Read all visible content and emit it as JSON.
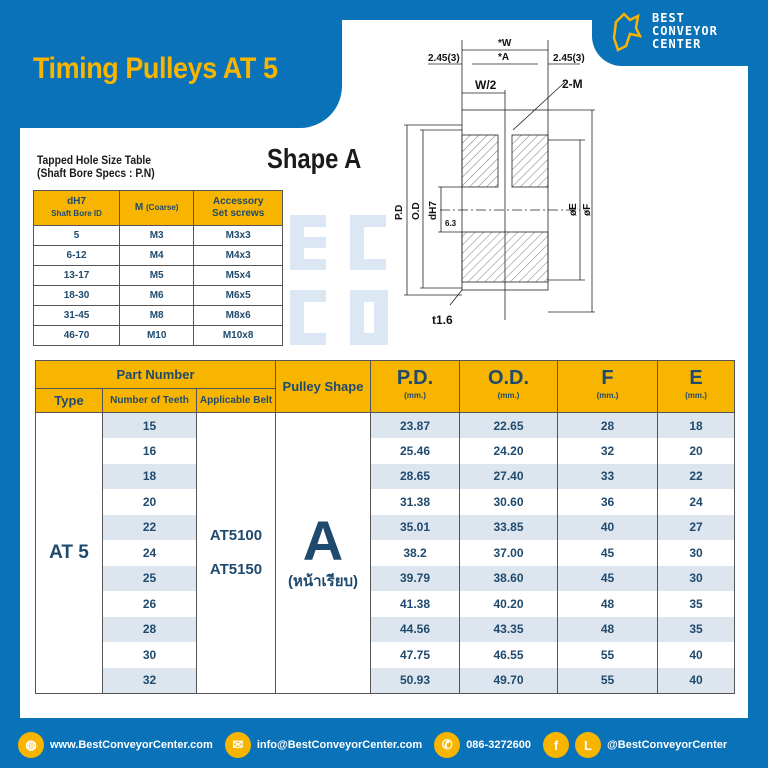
{
  "title": "Timing Pulleys AT 5",
  "logo": {
    "lines": [
      "BEST",
      "CONVEYOR",
      "CENTER"
    ]
  },
  "shape_title": "Shape A",
  "diagram": {
    "labels": {
      "w": "*W",
      "a": "*A",
      "side_l": "2.45(3)",
      "side_r": "2.45(3)",
      "w2": "W/2",
      "m": "2-M",
      "pd": "P.D",
      "od": "O.D",
      "dh7": "dH7",
      "rough": "6.3",
      "e": "øE",
      "f": "øF",
      "t": "t1.6"
    }
  },
  "tapped": {
    "caption": [
      "Tapped Hole Size Table",
      "(Shaft Bore Specs : P.N)"
    ],
    "headers": {
      "dh7": "dH7",
      "dh7_sub": "Shaft Bore ID",
      "m": "M",
      "m_sub": "(Coarse)",
      "acc1": "Accessory",
      "acc2": "Set screws"
    },
    "rows": [
      [
        "5",
        "M3",
        "M3x3"
      ],
      [
        "6-12",
        "M4",
        "M4x3"
      ],
      [
        "13-17",
        "M5",
        "M5x4"
      ],
      [
        "18-30",
        "M6",
        "M6x5"
      ],
      [
        "31-45",
        "M8",
        "M8x6"
      ],
      [
        "46-70",
        "M10",
        "M10x8"
      ]
    ]
  },
  "main": {
    "headers": {
      "part_number": "Part Number",
      "type": "Type",
      "teeth": "Number of Teeth",
      "belt": "Applicable Belt",
      "shape": "Pulley Shape",
      "pd": "P.D.",
      "od": "O.D.",
      "f": "F",
      "e": "E",
      "unit": "(mm.)"
    },
    "type": "AT 5",
    "belts": [
      "AT5100",
      "AT5150"
    ],
    "shape": "A",
    "shape_sub": "(หน้าเรียบ)",
    "rows": [
      [
        "15",
        "23.87",
        "22.65",
        "28",
        "18"
      ],
      [
        "16",
        "25.46",
        "24.20",
        "32",
        "20"
      ],
      [
        "18",
        "28.65",
        "27.40",
        "33",
        "22"
      ],
      [
        "20",
        "31.38",
        "30.60",
        "36",
        "24"
      ],
      [
        "22",
        "35.01",
        "33.85",
        "40",
        "27"
      ],
      [
        "24",
        "38.2",
        "37.00",
        "45",
        "30"
      ],
      [
        "25",
        "39.79",
        "38.60",
        "45",
        "30"
      ],
      [
        "26",
        "41.38",
        "40.20",
        "48",
        "35"
      ],
      [
        "28",
        "44.56",
        "43.35",
        "48",
        "35"
      ],
      [
        "30",
        "47.75",
        "46.55",
        "55",
        "40"
      ],
      [
        "32",
        "50.93",
        "49.70",
        "55",
        "40"
      ]
    ]
  },
  "footer": {
    "web": "www.BestConveyorCenter.com",
    "email": "info@BestConveyorCenter.com",
    "phone": "086-3272600",
    "social": "@BestConveyorCenter"
  },
  "colors": {
    "blue": "#0a72b9",
    "yellow": "#f7b500",
    "text": "#1f4a6e"
  }
}
